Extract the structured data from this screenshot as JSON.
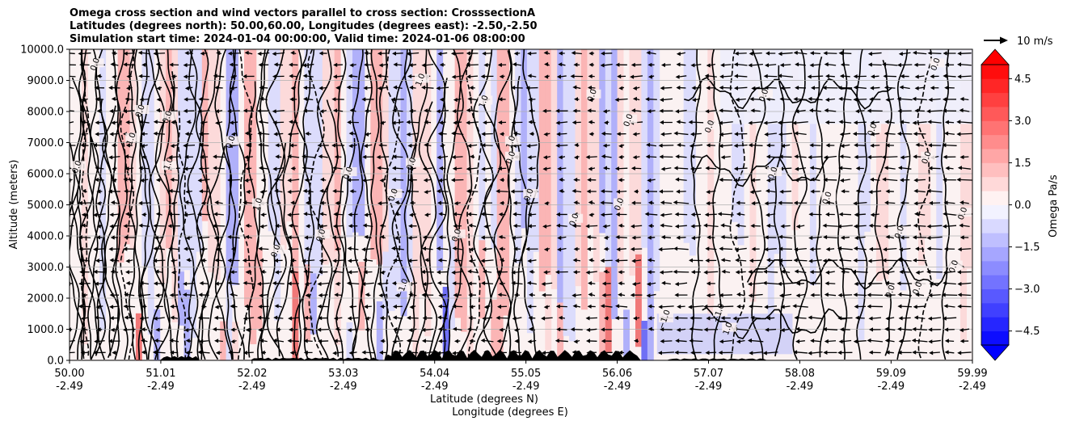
{
  "chart_data": {
    "type": "heatmap",
    "title_lines": [
      "Omega cross section and wind vectors parallel to cross section: CrosssectionA",
      "Latitudes (degrees north): 50.00,60.00, Longitudes (degrees east): -2.50,-2.50",
      "Simulation start time: 2024-01-04 00:00:00, Valid time: 2024-01-06 08:00:00"
    ],
    "ylabel": "Altitude (meters)",
    "xlabel_lines": [
      "Latitude (degrees N)",
      "Longitude (degrees E)"
    ],
    "ylim": [
      0,
      10000
    ],
    "yticks": [
      "0.0",
      "1000.0",
      "2000.0",
      "3000.0",
      "4000.0",
      "5000.0",
      "6000.0",
      "7000.0",
      "8000.0",
      "9000.0",
      "10000.0"
    ],
    "xlim": [
      50.0,
      59.99
    ],
    "xticks": [
      {
        "lat": "50.00",
        "lon": "-2.49"
      },
      {
        "lat": "51.01",
        "lon": "-2.49"
      },
      {
        "lat": "52.02",
        "lon": "-2.49"
      },
      {
        "lat": "53.03",
        "lon": "-2.49"
      },
      {
        "lat": "54.04",
        "lon": "-2.49"
      },
      {
        "lat": "55.05",
        "lon": "-2.49"
      },
      {
        "lat": "56.06",
        "lon": "-2.49"
      },
      {
        "lat": "57.07",
        "lon": "-2.49"
      },
      {
        "lat": "58.08",
        "lon": "-2.49"
      },
      {
        "lat": "59.09",
        "lon": "-2.49"
      },
      {
        "lat": "59.99",
        "lon": "-2.49"
      }
    ],
    "grid": true,
    "colorbar": {
      "label": "Omega Pa/s",
      "range": [
        -5,
        5
      ],
      "ticks": [
        "4.5",
        "3.0",
        "1.5",
        "0.0",
        "−1.5",
        "−3.0",
        "−4.5"
      ],
      "tick_values": [
        4.5,
        3.0,
        1.5,
        0.0,
        -1.5,
        -3.0,
        -4.5
      ],
      "colormap": "bwr",
      "extend": "both"
    },
    "quiver_key": "10 m/s",
    "contour_levels": [
      -1.0,
      0.0,
      1.0
    ],
    "contour_labels": [
      {
        "text": "0.0",
        "lat": 50.3,
        "alt": 9500
      },
      {
        "text": "0.0",
        "lat": 50.1,
        "alt": 6200
      },
      {
        "text": "1.0",
        "lat": 50.7,
        "alt": 7100
      },
      {
        "text": "0.0",
        "lat": 50.8,
        "alt": 8000
      },
      {
        "text": "0.0",
        "lat": 51.1,
        "alt": 7800
      },
      {
        "text": "−1.0",
        "lat": 51.1,
        "alt": 6200
      },
      {
        "text": "0.0",
        "lat": 51.8,
        "alt": 7000
      },
      {
        "text": "1.0",
        "lat": 52.1,
        "alt": 5000
      },
      {
        "text": "0.0",
        "lat": 52.3,
        "alt": 3500
      },
      {
        "text": "0.0",
        "lat": 52.8,
        "alt": 4000
      },
      {
        "text": "0.0",
        "lat": 53.1,
        "alt": 6000
      },
      {
        "text": "0.0",
        "lat": 53.6,
        "alt": 5300
      },
      {
        "text": "1.0",
        "lat": 53.9,
        "alt": 9000
      },
      {
        "text": "0.0",
        "lat": 53.8,
        "alt": 6300
      },
      {
        "text": "−1.0",
        "lat": 53.7,
        "alt": 2300
      },
      {
        "text": "0.0",
        "lat": 54.3,
        "alt": 4000
      },
      {
        "text": "1.0",
        "lat": 54.6,
        "alt": 8300
      },
      {
        "text": "0.0",
        "lat": 54.9,
        "alt": 6500
      },
      {
        "text": "1.0",
        "lat": 54.9,
        "alt": 7000
      },
      {
        "text": "0.0",
        "lat": 55.1,
        "alt": 5300
      },
      {
        "text": "0.0",
        "lat": 55.6,
        "alt": 4500
      },
      {
        "text": "0.0",
        "lat": 55.8,
        "alt": 8500
      },
      {
        "text": "0.0",
        "lat": 56.2,
        "alt": 7700
      },
      {
        "text": "0.0",
        "lat": 56.1,
        "alt": 5000
      },
      {
        "text": "−1.0",
        "lat": 56.6,
        "alt": 1300
      },
      {
        "text": "−1.0",
        "lat": 57.2,
        "alt": 1500
      },
      {
        "text": "1.0",
        "lat": 57.3,
        "alt": 1000
      },
      {
        "text": "0.0",
        "lat": 57.7,
        "alt": 8500
      },
      {
        "text": "0.0",
        "lat": 57.1,
        "alt": 7500
      },
      {
        "text": "0.0",
        "lat": 57.8,
        "alt": 6000
      },
      {
        "text": "0.0",
        "lat": 58.4,
        "alt": 5200
      },
      {
        "text": "0.0",
        "lat": 58.9,
        "alt": 7400
      },
      {
        "text": "0.0",
        "lat": 59.9,
        "alt": 4700
      },
      {
        "text": "0.0",
        "lat": 59.2,
        "alt": 4100
      },
      {
        "text": "0.0",
        "lat": 59.4,
        "alt": 2300
      },
      {
        "text": "0.0",
        "lat": 59.5,
        "alt": 6500
      },
      {
        "text": "0.0",
        "lat": 59.8,
        "alt": 3000
      },
      {
        "text": "0.0",
        "lat": 59.1,
        "alt": 2200
      },
      {
        "text": "0.0",
        "lat": 59.6,
        "alt": 9500
      }
    ]
  }
}
